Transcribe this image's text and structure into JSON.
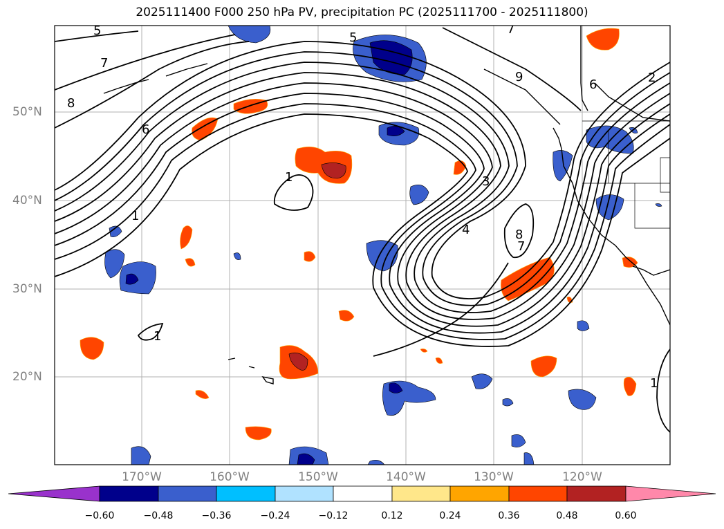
{
  "title": "2025111400 F000 250 hPa PV, precipitation PC (2025111700 - 2025111800)",
  "lat_labels": [
    "50°N",
    "40°N",
    "30°N",
    "20°N"
  ],
  "lon_labels": [
    "170°W",
    "160°W",
    "150°W",
    "140°W",
    "130°W",
    "120°W"
  ],
  "colorbar": {
    "ticks": [
      "−0.60",
      "−0.48",
      "−0.36",
      "−0.24",
      "−0.12",
      "0.12",
      "0.24",
      "0.36",
      "0.48",
      "0.60"
    ],
    "colors": [
      "#9932cc",
      "#00008b",
      "#3a5fcd",
      "#00bfff",
      "#b0e2ff",
      "#ffffff",
      "#ffe78a",
      "#ffa500",
      "#ff4500",
      "#b22222",
      "#ff88aa"
    ]
  },
  "contour_labels": [
    "5",
    "7",
    "8",
    "6",
    "1",
    "5",
    "9",
    "6",
    "2",
    "4",
    "3",
    "1",
    "8",
    "7",
    "1",
    "1",
    "7"
  ]
}
